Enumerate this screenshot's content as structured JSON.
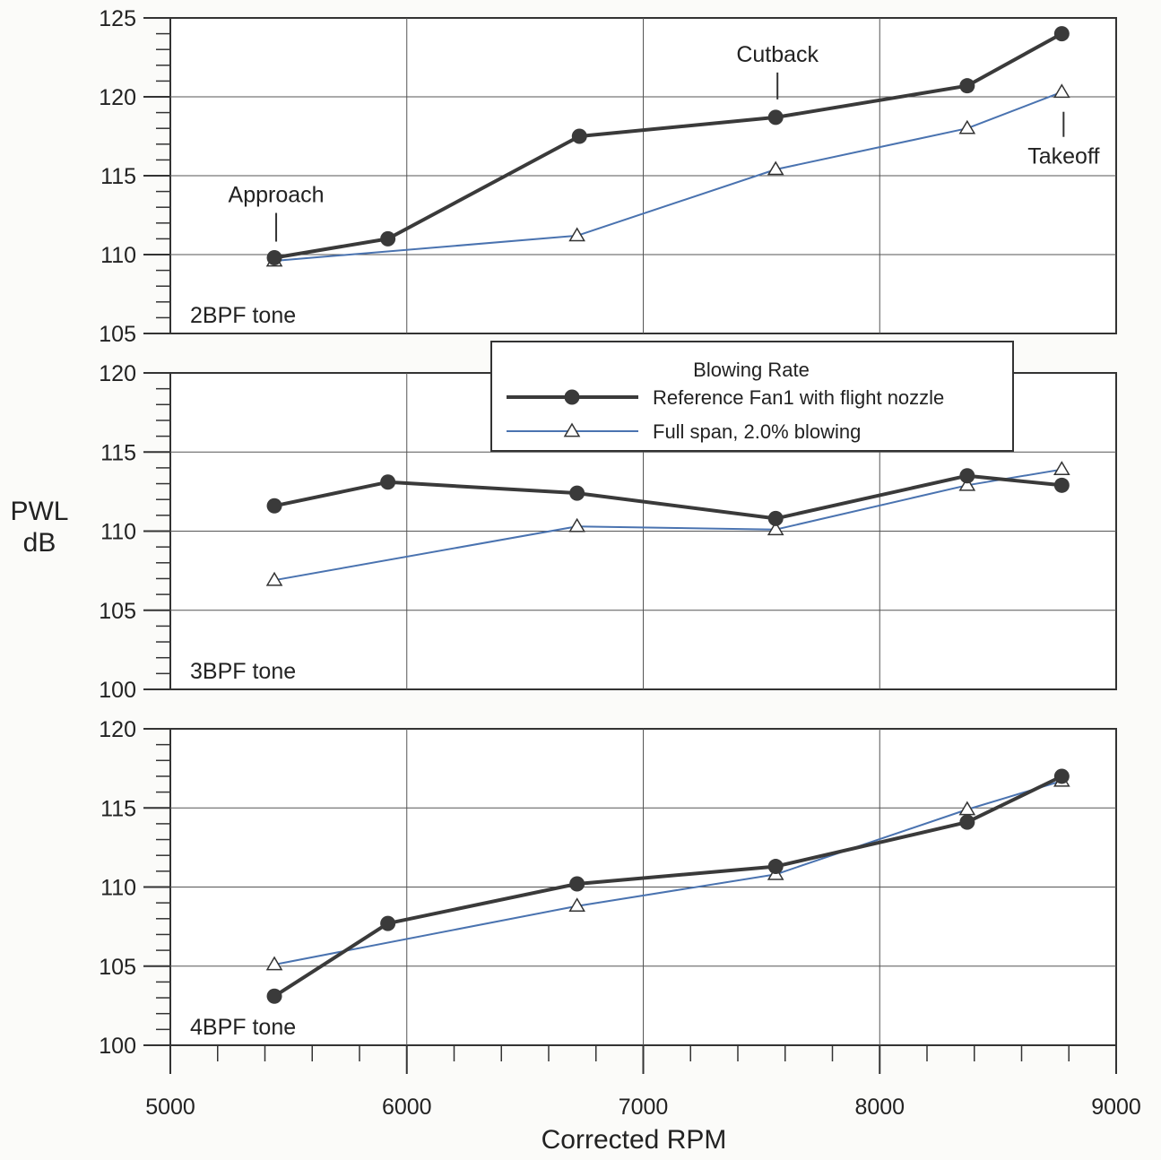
{
  "chart_data": {
    "type": "line",
    "shared": {
      "xlabel": "Corrected RPM",
      "ylabel_line1": "PWL",
      "ylabel_line2": "dB",
      "xlim": [
        5000,
        9000
      ],
      "x_ticks": [
        "5000",
        "6000",
        "7000",
        "8000",
        "9000"
      ],
      "x_minor_step": 200,
      "grid": true,
      "legend": {
        "title": "Blowing Rate",
        "placement": "top-right of middle panel",
        "entries": [
          "Reference Fan1 with flight nozzle",
          "Full span, 2.0% blowing"
        ]
      },
      "series_styles": [
        {
          "name": "Reference Fan1 with flight nozzle",
          "color": "#3a3a3a",
          "marker": "filled-circle"
        },
        {
          "name": "Full span, 2.0% blowing",
          "color": "#4a73b0",
          "marker": "open-triangle"
        }
      ]
    },
    "panels": [
      {
        "label": "2BPF tone",
        "ylim": [
          105,
          125
        ],
        "y_ticks": [
          "105",
          "110",
          "115",
          "120",
          "125"
        ],
        "series": [
          {
            "name": "Reference Fan1 with flight nozzle",
            "x": [
              5440,
              5920,
              6730,
              7560,
              8370,
              8770
            ],
            "y": [
              109.8,
              111.0,
              117.5,
              118.7,
              120.7,
              124.0
            ]
          },
          {
            "name": "Full span, 2.0% blowing",
            "x": [
              5440,
              6720,
              7560,
              8370,
              8770
            ],
            "y": [
              109.6,
              111.2,
              115.4,
              118.0,
              120.3
            ]
          }
        ],
        "annotations": [
          {
            "text": "Approach",
            "x": 5440
          },
          {
            "text": "Cutback",
            "x": 7560
          },
          {
            "text": "Takeoff",
            "x": 8770
          }
        ]
      },
      {
        "label": "3BPF tone",
        "ylim": [
          100,
          120
        ],
        "y_ticks": [
          "100",
          "105",
          "110",
          "115",
          "120"
        ],
        "series": [
          {
            "name": "Reference Fan1 with flight nozzle",
            "x": [
              5440,
              5920,
              6720,
              7560,
              8370,
              8770
            ],
            "y": [
              111.6,
              113.1,
              112.4,
              110.8,
              113.5,
              112.9
            ]
          },
          {
            "name": "Full span, 2.0% blowing",
            "x": [
              5440,
              6720,
              7560,
              8370,
              8770
            ],
            "y": [
              106.9,
              110.3,
              110.1,
              112.9,
              113.9
            ]
          }
        ]
      },
      {
        "label": "4BPF tone",
        "ylim": [
          100,
          120
        ],
        "y_ticks": [
          "100",
          "105",
          "110",
          "115",
          "120"
        ],
        "series": [
          {
            "name": "Reference Fan1 with flight nozzle",
            "x": [
              5440,
              5920,
              6720,
              7560,
              8370,
              8770
            ],
            "y": [
              103.1,
              107.7,
              110.2,
              111.3,
              114.1,
              117.0
            ]
          },
          {
            "name": "Full span, 2.0% blowing",
            "x": [
              5440,
              6720,
              7560,
              8370,
              8770
            ],
            "y": [
              105.1,
              108.8,
              110.8,
              114.9,
              116.7
            ]
          }
        ]
      }
    ]
  }
}
